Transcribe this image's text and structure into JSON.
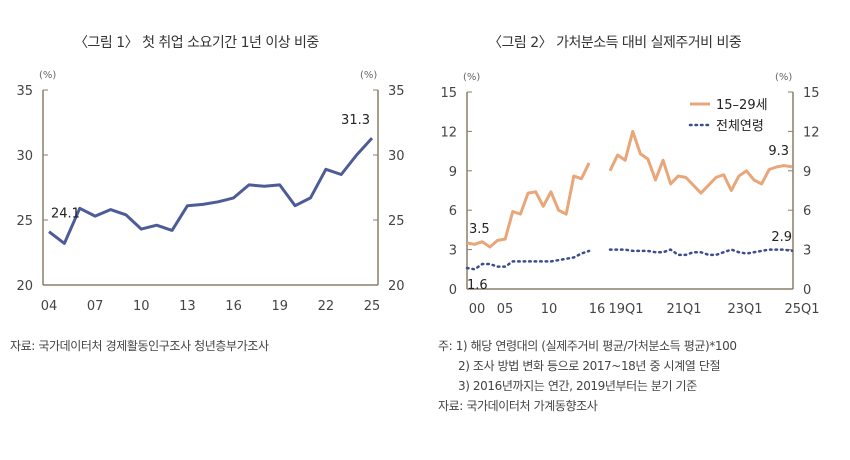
{
  "chart_data": [
    {
      "type": "line",
      "title": "〈그림 1〉 첫 취업 소요기간 1년 이상 비중",
      "unit_left": "(%)",
      "unit_right": "(%)",
      "ylim": [
        20,
        35
      ],
      "yticks": [
        20,
        25,
        30,
        35
      ],
      "x": [
        "04",
        "05",
        "06",
        "07",
        "08",
        "09",
        "10",
        "11",
        "12",
        "13",
        "14",
        "15",
        "16",
        "17",
        "18",
        "19",
        "20",
        "21",
        "22",
        "23",
        "24",
        "25"
      ],
      "xtick_labels": [
        "04",
        "07",
        "10",
        "13",
        "16",
        "19",
        "22",
        "25"
      ],
      "series": [
        {
          "name": "",
          "color": "#4d5c98",
          "values": [
            24.1,
            23.2,
            25.9,
            25.3,
            25.8,
            25.4,
            24.3,
            24.6,
            24.2,
            26.1,
            26.2,
            26.4,
            26.7,
            27.7,
            27.6,
            27.7,
            26.1,
            26.7,
            28.9,
            28.5,
            30.0,
            31.3
          ]
        }
      ],
      "annotations": [
        "24.1",
        "31.3"
      ],
      "source": "자료: 국가데이터처 경제활동인구조사 청년층부가조사"
    },
    {
      "type": "line",
      "title": "〈그림 2〉 가처분소득 대비 실제주거비 비중",
      "unit_left": "(%)",
      "unit_right": "(%)",
      "ylim": [
        0,
        15
      ],
      "yticks": [
        0,
        3,
        6,
        9,
        12,
        15
      ],
      "xtick_labels": [
        "00",
        "05",
        "10",
        "16",
        "19Q1",
        "21Q1",
        "23Q1",
        "25Q1"
      ],
      "series": [
        {
          "name": "15–29세",
          "color": "#e8a679",
          "annual": [
            3.5,
            3.4,
            3.6,
            3.2,
            3.7,
            3.8,
            5.9,
            5.7,
            7.3,
            7.4,
            6.3,
            7.4,
            6.0,
            5.7,
            8.6,
            8.4,
            9.6
          ],
          "quarterly": [
            9.0,
            10.2,
            9.8,
            12.0,
            10.3,
            9.9,
            8.3,
            9.8,
            8.0,
            8.6,
            8.5,
            7.9,
            7.3,
            7.9,
            8.5,
            8.7,
            7.5,
            8.6,
            9.0,
            8.3,
            8.0,
            9.1,
            9.3,
            9.4,
            9.3
          ]
        },
        {
          "name": "전체연령",
          "color": "#3e4c8c",
          "annual": [
            1.6,
            1.5,
            1.9,
            1.9,
            1.7,
            1.7,
            2.1,
            2.1,
            2.1,
            2.1,
            2.1,
            2.1,
            2.2,
            2.3,
            2.4,
            2.7,
            2.9
          ],
          "quarterly": [
            3.0,
            3.0,
            3.0,
            2.9,
            2.9,
            2.9,
            2.8,
            2.8,
            3.0,
            2.6,
            2.6,
            2.8,
            2.8,
            2.6,
            2.6,
            2.8,
            3.0,
            2.8,
            2.7,
            2.8,
            2.9,
            3.0,
            3.0,
            3.0,
            2.9
          ]
        }
      ],
      "annotations": [
        "3.5",
        "1.6",
        "9.3",
        "2.9"
      ],
      "notes": [
        "주: 1) 해당 연령대의 (실제주거비 평균/가처분소득 평균)*100",
        "2) 조사 방법 변화 등으로 2017~18년 중 시계열 단절",
        "3) 2016년까지는 연간, 2019년부터는 분기 기준"
      ],
      "source": "자료: 국가데이터처 가계동향조사"
    }
  ]
}
